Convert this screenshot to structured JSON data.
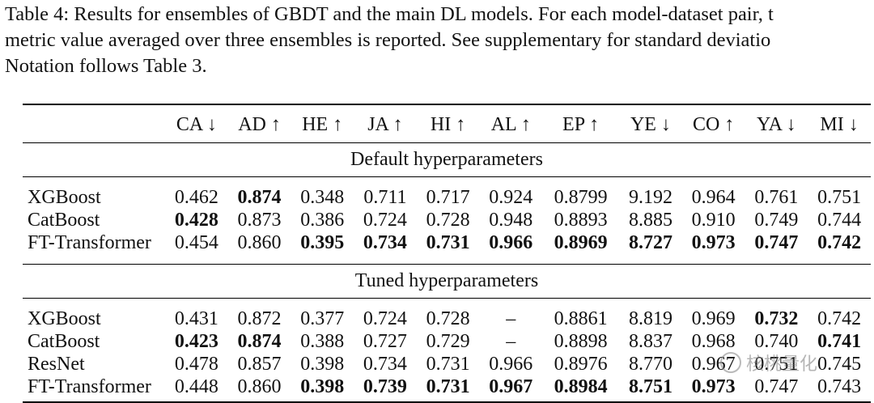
{
  "caption": {
    "line1": "Table 4: Results for ensembles of GBDT and the main DL models. For each model-dataset pair, t",
    "line2": "metric value averaged over three ensembles is reported. See supplementary for standard deviatio",
    "line3": "Notation follows Table 3."
  },
  "table": {
    "columns": [
      "CA ↓",
      "AD ↑",
      "HE ↑",
      "JA ↑",
      "HI ↑",
      "AL ↑",
      "EP ↑",
      "YE ↓",
      "CO ↑",
      "YA ↓",
      "MI ↓"
    ],
    "sections": [
      {
        "title": "Default hyperparameters",
        "rows": [
          {
            "model": "XGBoost",
            "values": [
              "0.462",
              "0.874",
              "0.348",
              "0.711",
              "0.717",
              "0.924",
              "0.8799",
              "9.192",
              "0.964",
              "0.761",
              "0.751"
            ],
            "bold": [
              false,
              true,
              false,
              false,
              false,
              false,
              false,
              false,
              false,
              false,
              false
            ]
          },
          {
            "model": "CatBoost",
            "values": [
              "0.428",
              "0.873",
              "0.386",
              "0.724",
              "0.728",
              "0.948",
              "0.8893",
              "8.885",
              "0.910",
              "0.749",
              "0.744"
            ],
            "bold": [
              true,
              false,
              false,
              false,
              false,
              false,
              false,
              false,
              false,
              false,
              false
            ]
          },
          {
            "model": "FT-Transformer",
            "values": [
              "0.454",
              "0.860",
              "0.395",
              "0.734",
              "0.731",
              "0.966",
              "0.8969",
              "8.727",
              "0.973",
              "0.747",
              "0.742"
            ],
            "bold": [
              false,
              false,
              true,
              true,
              true,
              true,
              true,
              true,
              true,
              true,
              true
            ]
          }
        ]
      },
      {
        "title": "Tuned hyperparameters",
        "rows": [
          {
            "model": "XGBoost",
            "values": [
              "0.431",
              "0.872",
              "0.377",
              "0.724",
              "0.728",
              "–",
              "0.8861",
              "8.819",
              "0.969",
              "0.732",
              "0.742"
            ],
            "bold": [
              false,
              false,
              false,
              false,
              false,
              false,
              false,
              false,
              false,
              true,
              false
            ]
          },
          {
            "model": "CatBoost",
            "values": [
              "0.423",
              "0.874",
              "0.388",
              "0.727",
              "0.729",
              "–",
              "0.8898",
              "8.837",
              "0.968",
              "0.740",
              "0.741"
            ],
            "bold": [
              true,
              true,
              false,
              false,
              false,
              false,
              false,
              false,
              false,
              false,
              true
            ]
          },
          {
            "model": "ResNet",
            "values": [
              "0.478",
              "0.857",
              "0.398",
              "0.734",
              "0.731",
              "0.966",
              "0.8976",
              "8.770",
              "0.967",
              "0.751",
              "0.745"
            ],
            "bold": [
              false,
              false,
              false,
              false,
              false,
              false,
              false,
              false,
              false,
              false,
              false
            ]
          },
          {
            "model": "FT-Transformer",
            "values": [
              "0.448",
              "0.860",
              "0.398",
              "0.739",
              "0.731",
              "0.967",
              "0.8984",
              "8.751",
              "0.973",
              "0.747",
              "0.743"
            ],
            "bold": [
              false,
              false,
              true,
              true,
              true,
              true,
              true,
              true,
              true,
              false,
              false
            ]
          }
        ]
      }
    ]
  },
  "watermark": {
    "text": "核桃量化",
    "icon": "wechat-icon"
  }
}
